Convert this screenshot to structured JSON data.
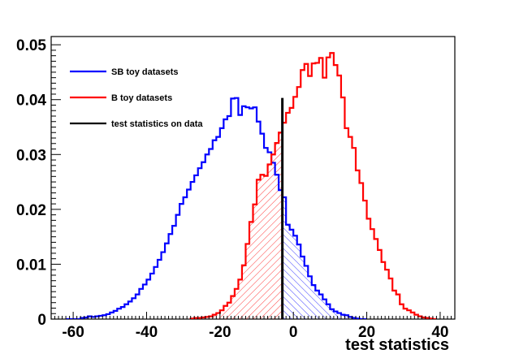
{
  "chart_data": {
    "type": "histogram",
    "title": "",
    "xlabel": "test statistics",
    "ylabel": "",
    "xlim": [
      -66,
      44
    ],
    "ylim": [
      0,
      0.0515
    ],
    "x_ticks": [
      -60,
      -40,
      -20,
      0,
      20,
      40
    ],
    "x_tick_labels": [
      "-60",
      "-40",
      "-20",
      "0",
      "20",
      "40"
    ],
    "y_ticks": [
      0,
      0.01,
      0.02,
      0.03,
      0.04,
      0.05
    ],
    "y_tick_labels": [
      "0",
      "0.01",
      "0.02",
      "0.03",
      "0.04",
      "0.05"
    ],
    "bin_width": 1,
    "series": [
      {
        "name": "SB toy datasets",
        "color": "#0000ff",
        "fill": "hatched",
        "x_start": -62,
        "values": [
          0,
          0,
          0,
          0,
          0.0002,
          0.0003,
          0.0005,
          0.0004,
          0.0005,
          0.0006,
          0.0007,
          0.0009,
          0.0012,
          0.0015,
          0.0019,
          0.0022,
          0.0027,
          0.0032,
          0.0038,
          0.0045,
          0.0055,
          0.0063,
          0.0072,
          0.0083,
          0.0095,
          0.0108,
          0.0122,
          0.0138,
          0.0155,
          0.017,
          0.019,
          0.021,
          0.0222,
          0.0236,
          0.025,
          0.0262,
          0.0275,
          0.0286,
          0.03,
          0.031,
          0.0326,
          0.0332,
          0.0348,
          0.0364,
          0.037,
          0.0402,
          0.0403,
          0.0372,
          0.0388,
          0.0386,
          0.0384,
          0.0386,
          0.036,
          0.0338,
          0.0312,
          0.0304,
          0.0285,
          0.0263,
          0.0235,
          0.0222,
          0.0172,
          0.0163,
          0.0152,
          0.0136,
          0.0114,
          0.0097,
          0.0078,
          0.0062,
          0.0052,
          0.0045,
          0.0036,
          0.0027,
          0.0018,
          0.0014,
          0.0011,
          0.0008,
          0.0007,
          0.0004,
          0.0002,
          0.0001,
          0,
          0
        ]
      },
      {
        "name": "B toy datasets",
        "color": "#ff0000",
        "fill": "hatched",
        "x_start": -28,
        "values": [
          0.0001,
          0.0002,
          0.0002,
          0.0003,
          0.0004,
          0.0005,
          0.0008,
          0.0011,
          0.0016,
          0.0024,
          0.003,
          0.0042,
          0.0055,
          0.0072,
          0.0098,
          0.0137,
          0.0177,
          0.0209,
          0.0254,
          0.0263,
          0.0261,
          0.0282,
          0.03,
          0.0321,
          0.034,
          0.0358,
          0.0376,
          0.0385,
          0.0405,
          0.0423,
          0.0454,
          0.0465,
          0.0443,
          0.0466,
          0.0467,
          0.0476,
          0.044,
          0.0477,
          0.0485,
          0.0463,
          0.0444,
          0.0404,
          0.0348,
          0.0332,
          0.0312,
          0.0271,
          0.0248,
          0.0216,
          0.0183,
          0.0164,
          0.0146,
          0.0126,
          0.0104,
          0.009,
          0.0074,
          0.0052,
          0.0045,
          0.0027,
          0.0019,
          0.0016,
          0.0012,
          0.0008,
          0.0005,
          0.0003,
          0.0002,
          0.0001,
          0
        ]
      }
    ],
    "observed": {
      "name": "test statistics on data",
      "color": "#000000",
      "x": -3,
      "height": 0.0403
    },
    "legend": {
      "position": "top-left",
      "entries": [
        {
          "label": "SB toy datasets",
          "color": "#0000ff"
        },
        {
          "label": "B toy datasets",
          "color": "#ff0000"
        },
        {
          "label": "test statistics on data",
          "color": "#000000"
        }
      ]
    }
  }
}
